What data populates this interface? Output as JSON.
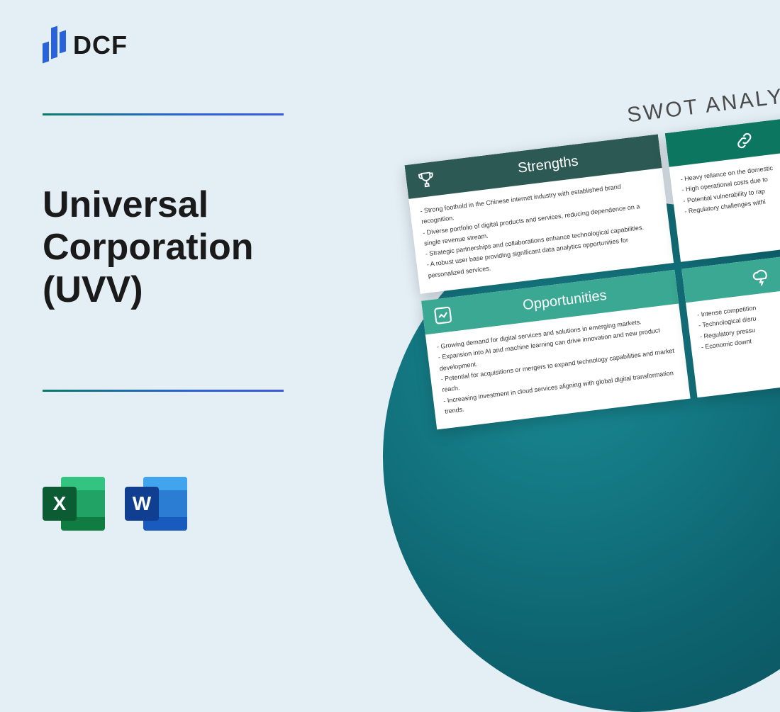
{
  "logo": {
    "text": "DCF"
  },
  "title": "Universal Corporation (UVV)",
  "swot": {
    "heading": "SWOT ANALYSIS",
    "strengths": {
      "title": "Strengths",
      "items": [
        "Strong foothold in the Chinese internet industry with established brand recognition.",
        "Diverse portfolio of digital products and services, reducing dependence on a single revenue stream.",
        "Strategic partnerships and collaborations enhance technological capabilities.",
        "A robust user base providing significant data analytics opportunities for personalized services."
      ]
    },
    "weaknesses": {
      "items": [
        "Heavy reliance on the domestic",
        "High operational costs due to",
        "Potential vulnerability to rap",
        "Regulatory challenges withi"
      ]
    },
    "opportunities": {
      "title": "Opportunities",
      "items": [
        "Growing demand for digital services and solutions in emerging markets.",
        "Expansion into AI and machine learning can drive innovation and new product development.",
        "Potential for acquisitions or mergers to expand technology capabilities and market reach.",
        "Increasing investment in cloud services aligning with global digital transformation trends."
      ]
    },
    "threats": {
      "items": [
        "Intense competition",
        "Technological disru",
        "Regulatory pressu",
        "Economic downt"
      ]
    }
  },
  "colors": {
    "page_bg": "#e3eef5",
    "circle_gradient": [
      "#1a8b94",
      "#0d6470",
      "#0a4f5a"
    ],
    "hr_gradient": [
      "#0a7a6a",
      "#2962d9",
      "#3b5bdb"
    ],
    "strengths_header": "#2d5954",
    "weaknesses_header": "#0d7660",
    "opportunities_header": "#3aa893",
    "threats_header": "#3aa893",
    "excel": "#107c41",
    "word": "#185abd"
  },
  "file_icons": {
    "excel_letter": "X",
    "word_letter": "W"
  }
}
